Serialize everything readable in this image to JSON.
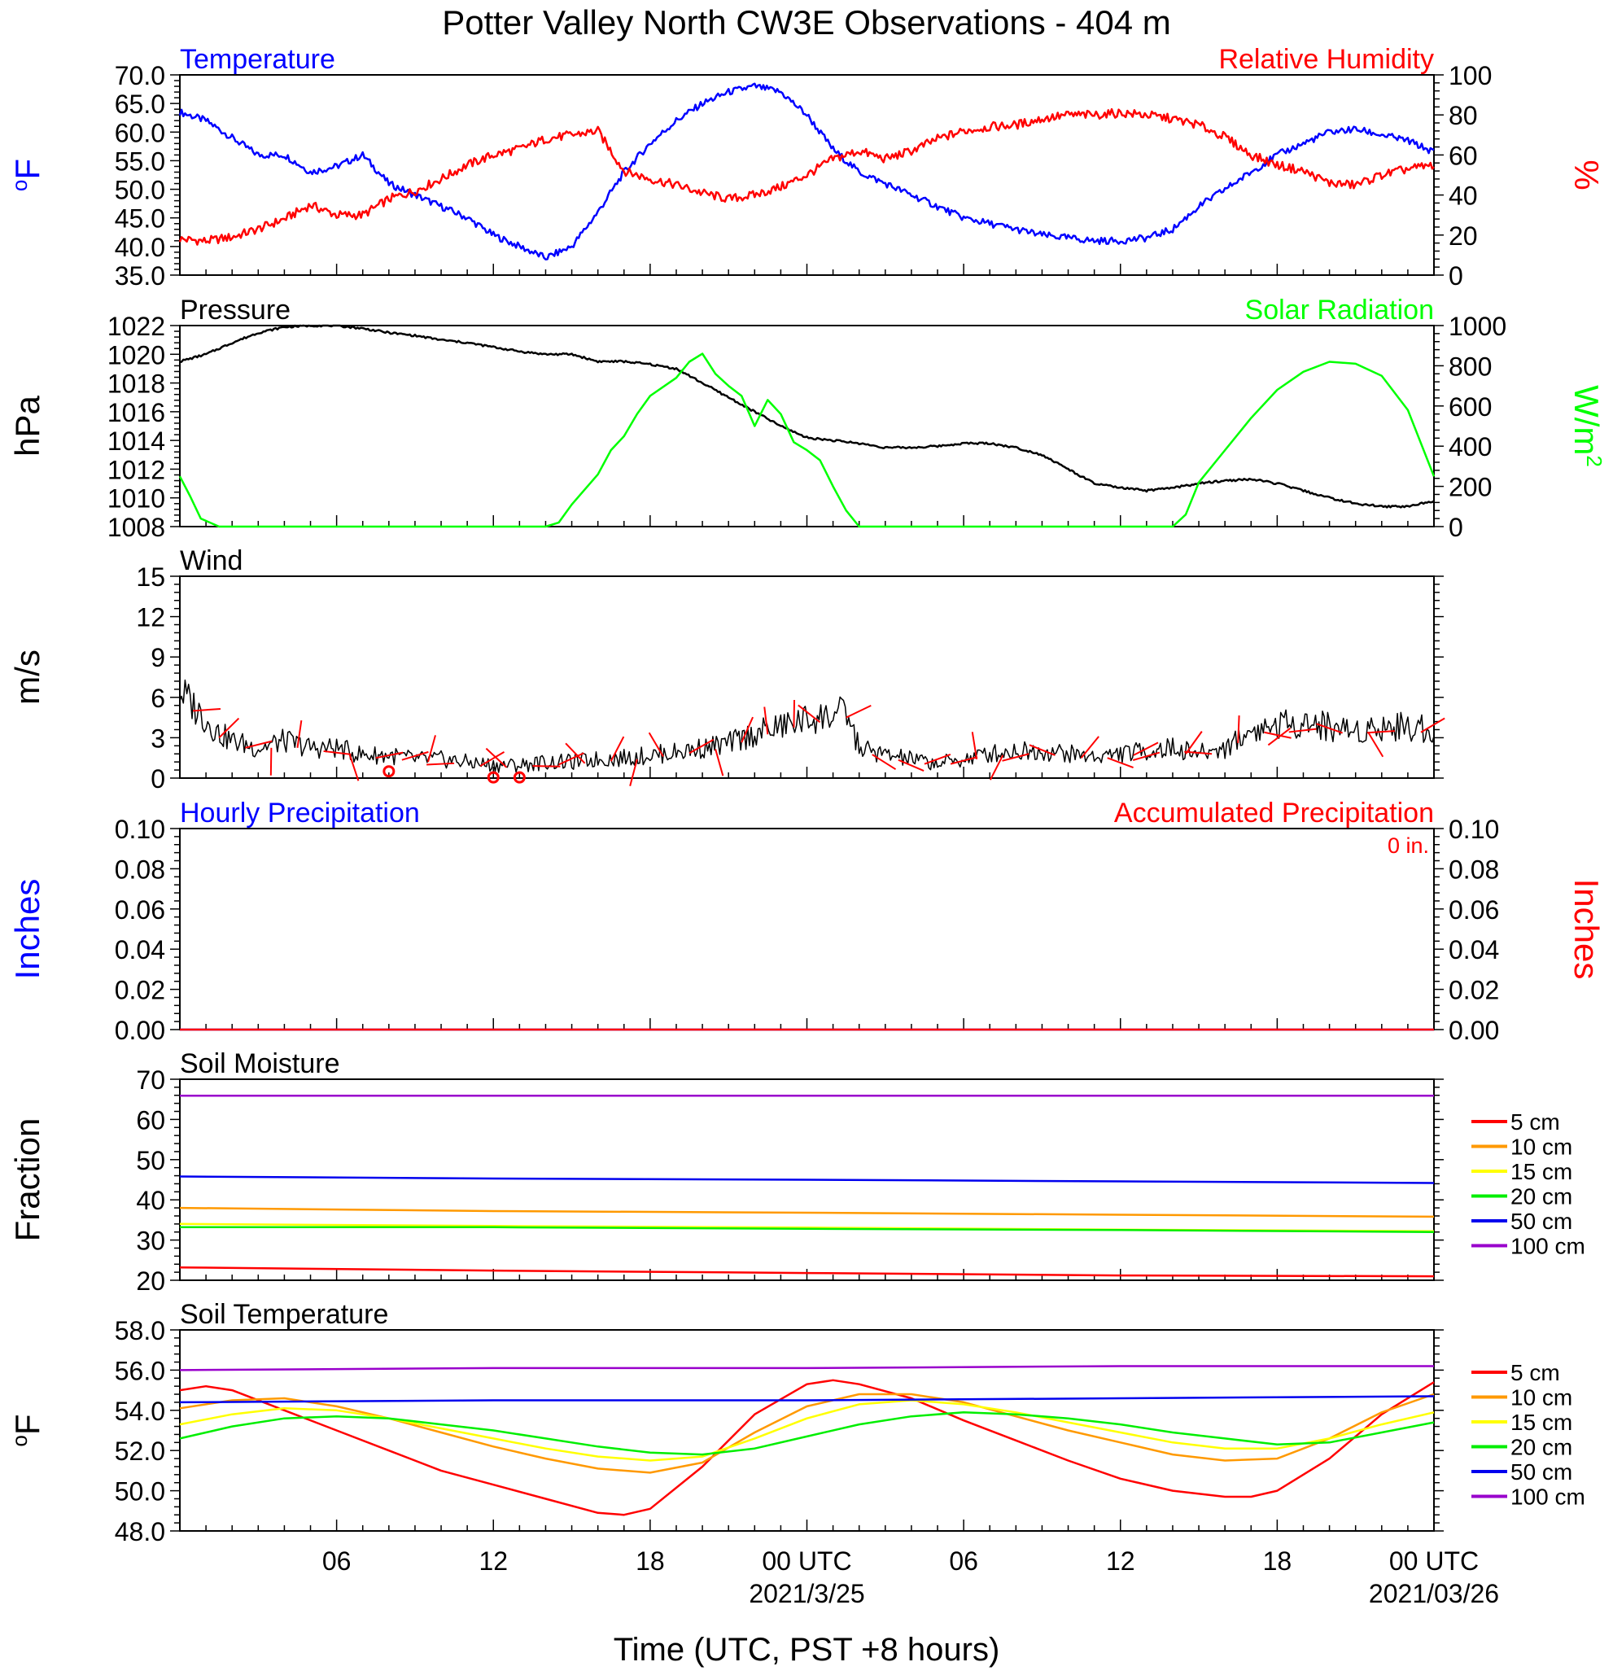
{
  "title": "Potter Valley North CW3E Observations - 404 m",
  "x_axis": {
    "label": "Time (UTC, PST +8 hours)",
    "tick_labels": [
      "06",
      "12",
      "18",
      "00 UTC",
      "06",
      "12",
      "18",
      "00 UTC"
    ],
    "date_labels": [
      "2021/3/25",
      "2021/03/26"
    ],
    "range_hours": [
      0,
      48
    ]
  },
  "colors": {
    "temperature": "#0000ff",
    "humidity": "#ff0000",
    "pressure": "#000000",
    "solar": "#00ff00",
    "wind_speed": "#000000",
    "wind_barb": "#ff0000",
    "hourly_precip": "#0000ff",
    "accum_precip": "#ff0000",
    "depth_5": "#ff0000",
    "depth_10": "#ff9900",
    "depth_15": "#ffff00",
    "depth_20": "#00ee00",
    "depth_50": "#0000ee",
    "depth_100": "#9900cc"
  },
  "chart_data": [
    {
      "type": "line",
      "panel": "temperature_humidity",
      "left_title": "Temperature",
      "right_title": "Relative Humidity",
      "ylabel_left": "oF",
      "ylabel_right": "%",
      "ylim_left": [
        35,
        70
      ],
      "ylim_right": [
        0,
        100
      ],
      "yticks_left": [
        "35.0",
        "40.0",
        "45.0",
        "50.0",
        "55.0",
        "60.0",
        "65.0",
        "70.0"
      ],
      "yticks_right": [
        "0",
        "20",
        "40",
        "60",
        "80",
        "100"
      ],
      "series": [
        {
          "name": "Temperature",
          "axis": "left",
          "x": [
            0,
            1,
            2,
            3,
            4,
            5,
            6,
            7,
            8,
            9,
            10,
            11,
            12,
            13,
            14,
            15,
            16,
            17,
            18,
            19,
            20,
            21,
            22,
            23,
            24,
            25,
            26,
            27,
            28,
            29,
            30,
            31,
            32,
            33,
            34,
            35,
            36,
            37,
            38,
            39,
            40,
            41,
            42,
            43,
            44,
            45,
            46,
            47,
            48
          ],
          "y": [
            63.5,
            62,
            59,
            56,
            56,
            53,
            54,
            56,
            51,
            49,
            47,
            45,
            42,
            40,
            38,
            40,
            46,
            53,
            58,
            62,
            65,
            67,
            68,
            67,
            63,
            57,
            53,
            51,
            49,
            47,
            45,
            44,
            43,
            42,
            41.5,
            41,
            41,
            41.5,
            43,
            47,
            50,
            53,
            56,
            58,
            60,
            60.5,
            59.5,
            58.5,
            56.5
          ]
        },
        {
          "name": "Relative Humidity",
          "axis": "right",
          "x": [
            0,
            1,
            2,
            3,
            4,
            5,
            6,
            7,
            8,
            9,
            10,
            11,
            12,
            13,
            14,
            15,
            16,
            17,
            18,
            19,
            20,
            21,
            22,
            23,
            24,
            25,
            26,
            27,
            28,
            29,
            30,
            31,
            32,
            33,
            34,
            35,
            36,
            37,
            38,
            39,
            40,
            41,
            42,
            43,
            44,
            45,
            46,
            47,
            48
          ],
          "y": [
            18,
            17,
            19,
            23,
            28,
            35,
            30,
            30,
            38,
            42,
            48,
            55,
            60,
            63,
            68,
            70,
            72,
            52,
            48,
            45,
            41,
            38,
            40,
            44,
            50,
            58,
            62,
            58,
            62,
            68,
            72,
            74,
            75,
            78,
            80,
            80,
            81,
            80,
            78,
            75,
            69,
            60,
            55,
            52,
            46,
            45,
            50,
            53,
            55
          ]
        }
      ]
    },
    {
      "type": "line",
      "panel": "pressure_solar",
      "left_title": "Pressure",
      "right_title": "Solar Radiation",
      "ylabel_left": "hPa",
      "ylabel_right": "W/m2",
      "ylim_left": [
        1008,
        1022
      ],
      "ylim_right": [
        0,
        1000
      ],
      "yticks_left": [
        "1008",
        "1010",
        "1012",
        "1014",
        "1016",
        "1018",
        "1020",
        "1022"
      ],
      "yticks_right": [
        "0",
        "200",
        "400",
        "600",
        "800",
        "1000"
      ],
      "series": [
        {
          "name": "Pressure",
          "axis": "left",
          "x": [
            0,
            1,
            2,
            3,
            4,
            5,
            6,
            7,
            8,
            9,
            10,
            11,
            12,
            13,
            14,
            15,
            16,
            17,
            18,
            19,
            20,
            21,
            22,
            23,
            24,
            25,
            26,
            27,
            28,
            29,
            30,
            31,
            32,
            33,
            34,
            35,
            36,
            37,
            38,
            39,
            40,
            41,
            42,
            43,
            44,
            45,
            46,
            47,
            48
          ],
          "y": [
            1019.5,
            1020,
            1020.8,
            1021.5,
            1021.9,
            1022,
            1022,
            1021.8,
            1021.5,
            1021.3,
            1021,
            1020.8,
            1020.5,
            1020.2,
            1020,
            1020,
            1019.5,
            1019.5,
            1019.3,
            1019,
            1018,
            1017,
            1016,
            1015,
            1014.2,
            1014,
            1013.8,
            1013.5,
            1013.5,
            1013.6,
            1013.8,
            1013.8,
            1013.5,
            1013,
            1012,
            1011,
            1010.7,
            1010.5,
            1010.7,
            1011,
            1011.2,
            1011.3,
            1011,
            1010.5,
            1010,
            1009.6,
            1009.4,
            1009.4,
            1009.8
          ]
        },
        {
          "name": "Solar Radiation",
          "axis": "right",
          "x": [
            0,
            0.4,
            0.8,
            1.5,
            2,
            4,
            6,
            8,
            10,
            12,
            13,
            14,
            14.5,
            15,
            16,
            16.5,
            17,
            17.5,
            18,
            19,
            19.5,
            20,
            20.5,
            21,
            21.5,
            22,
            22.5,
            23,
            23.5,
            24,
            24.5,
            25,
            25.5,
            26,
            28,
            30,
            32,
            34,
            36,
            37,
            38,
            38.5,
            39,
            40,
            41,
            42,
            43,
            44,
            45,
            46,
            47,
            48
          ],
          "y": [
            250,
            150,
            40,
            0,
            0,
            0,
            0,
            0,
            0,
            0,
            0,
            0,
            20,
            110,
            260,
            380,
            450,
            560,
            650,
            740,
            820,
            860,
            760,
            700,
            650,
            500,
            630,
            560,
            420,
            380,
            330,
            200,
            80,
            0,
            0,
            0,
            0,
            0,
            0,
            0,
            0,
            60,
            220,
            380,
            540,
            680,
            770,
            820,
            810,
            750,
            580,
            250
          ]
        }
      ]
    },
    {
      "type": "line",
      "panel": "wind",
      "left_title": "Wind",
      "ylabel_left": "m/s",
      "ylim_left": [
        0,
        15
      ],
      "yticks_left": [
        "0",
        "3",
        "6",
        "9",
        "12",
        "15"
      ],
      "series": [
        {
          "name": "Wind",
          "axis": "left",
          "x": [
            0,
            0.5,
            1,
            1.5,
            2,
            3,
            4,
            5,
            6,
            7,
            8,
            9,
            10,
            11,
            12,
            13,
            14,
            15,
            16,
            17,
            18,
            19,
            20,
            21,
            22,
            23,
            24,
            25,
            25.5,
            26,
            27,
            28,
            29,
            30,
            31,
            32,
            33,
            34,
            35,
            36,
            37,
            38,
            39,
            40,
            41,
            42,
            43,
            44,
            45,
            46,
            47,
            48
          ],
          "y": [
            6,
            5,
            4,
            3,
            2.5,
            2,
            2.5,
            2,
            2,
            1.5,
            1.5,
            1.2,
            1.2,
            1,
            0.8,
            0.8,
            1,
            1,
            1.2,
            1.3,
            1.5,
            1.7,
            2,
            2.3,
            3,
            3.5,
            4,
            4.3,
            4.5,
            2,
            1.5,
            1.2,
            0.9,
            1.2,
            1.6,
            1.8,
            1.8,
            1.6,
            1.4,
            1.6,
            1.8,
            2,
            1.6,
            2,
            3.2,
            3.6,
            3.8,
            3.5,
            3.2,
            3.5,
            3.5,
            3.3
          ]
        }
      ]
    },
    {
      "type": "line",
      "panel": "precipitation",
      "left_title": "Hourly Precipitation",
      "right_title": "Accumulated Precipitation",
      "annotation": "0 in.",
      "ylabel_left": "Inches",
      "ylabel_right": "Inches",
      "ylim_left": [
        0,
        0.1
      ],
      "ylim_right": [
        0,
        0.1
      ],
      "yticks_left": [
        "0.00",
        "0.02",
        "0.04",
        "0.06",
        "0.08",
        "0.10"
      ],
      "yticks_right": [
        "0.00",
        "0.02",
        "0.04",
        "0.06",
        "0.08",
        "0.10"
      ],
      "series": [
        {
          "name": "Hourly Precipitation",
          "axis": "left",
          "x": [
            0,
            48
          ],
          "y": [
            0,
            0
          ]
        },
        {
          "name": "Accumulated Precipitation",
          "axis": "right",
          "x": [
            0,
            48
          ],
          "y": [
            0,
            0
          ]
        }
      ]
    },
    {
      "type": "line",
      "panel": "soil_moisture",
      "left_title": "Soil Moisture",
      "ylabel_left": "Fraction",
      "ylim_left": [
        20,
        70
      ],
      "yticks_left": [
        "20",
        "30",
        "40",
        "50",
        "60",
        "70"
      ],
      "legend": [
        "5 cm",
        "10 cm",
        "15 cm",
        "20 cm",
        "50 cm",
        "100 cm"
      ],
      "series": [
        {
          "name": "5 cm",
          "axis": "left",
          "x": [
            0,
            12,
            24,
            36,
            48
          ],
          "y": [
            23.2,
            22.4,
            21.8,
            21.2,
            21
          ]
        },
        {
          "name": "10 cm",
          "axis": "left",
          "x": [
            0,
            12,
            24,
            36,
            48
          ],
          "y": [
            38,
            37.2,
            36.8,
            36.3,
            35.8
          ]
        },
        {
          "name": "15 cm",
          "axis": "left",
          "x": [
            0,
            12,
            24,
            36,
            48
          ],
          "y": [
            34,
            33.5,
            33.1,
            32.6,
            32.2
          ]
        },
        {
          "name": "20 cm",
          "axis": "left",
          "x": [
            0,
            12,
            24,
            36,
            48
          ],
          "y": [
            33.2,
            33.2,
            32.8,
            32.5,
            32
          ]
        },
        {
          "name": "50 cm",
          "axis": "left",
          "x": [
            0,
            12,
            24,
            36,
            48
          ],
          "y": [
            45.8,
            45.3,
            45,
            44.6,
            44.2
          ]
        },
        {
          "name": "100 cm",
          "axis": "left",
          "x": [
            0,
            12,
            24,
            36,
            48
          ],
          "y": [
            65.9,
            65.9,
            65.9,
            65.9,
            65.9
          ]
        }
      ]
    },
    {
      "type": "line",
      "panel": "soil_temperature",
      "left_title": "Soil Temperature",
      "ylabel_left": "oF",
      "ylim_left": [
        48,
        58
      ],
      "yticks_left": [
        "48.0",
        "50.0",
        "52.0",
        "54.0",
        "56.0",
        "58.0"
      ],
      "legend": [
        "5 cm",
        "10 cm",
        "15 cm",
        "20 cm",
        "50 cm",
        "100 cm"
      ],
      "series": [
        {
          "name": "5 cm",
          "axis": "left",
          "x": [
            0,
            1,
            2,
            4,
            6,
            8,
            10,
            12,
            14,
            16,
            17,
            18,
            20,
            22,
            24,
            25,
            26,
            28,
            30,
            32,
            34,
            36,
            38,
            40,
            41,
            42,
            44,
            46,
            48
          ],
          "y": [
            55,
            55.2,
            55,
            54,
            53,
            52,
            51,
            50.3,
            49.6,
            48.9,
            48.8,
            49.1,
            51.2,
            53.8,
            55.3,
            55.5,
            55.3,
            54.6,
            53.5,
            52.5,
            51.5,
            50.6,
            50,
            49.7,
            49.7,
            50,
            51.6,
            53.8,
            55.4
          ]
        },
        {
          "name": "10 cm",
          "axis": "left",
          "x": [
            0,
            2,
            4,
            6,
            8,
            10,
            12,
            14,
            16,
            18,
            20,
            22,
            24,
            26,
            28,
            30,
            32,
            34,
            36,
            38,
            40,
            42,
            44,
            46,
            48
          ],
          "y": [
            54.1,
            54.5,
            54.6,
            54.2,
            53.6,
            52.9,
            52.2,
            51.6,
            51.1,
            50.9,
            51.4,
            52.9,
            54.2,
            54.8,
            54.8,
            54.4,
            53.7,
            53,
            52.4,
            51.8,
            51.5,
            51.6,
            52.6,
            53.9,
            54.8
          ]
        },
        {
          "name": "15 cm",
          "axis": "left",
          "x": [
            0,
            2,
            4,
            6,
            8,
            10,
            12,
            14,
            16,
            18,
            20,
            22,
            24,
            26,
            28,
            30,
            32,
            34,
            36,
            38,
            40,
            42,
            44,
            46,
            48
          ],
          "y": [
            53.3,
            53.8,
            54.1,
            54,
            53.6,
            53.1,
            52.6,
            52.1,
            51.7,
            51.5,
            51.7,
            52.6,
            53.6,
            54.3,
            54.5,
            54.3,
            53.9,
            53.4,
            52.9,
            52.4,
            52.1,
            52.1,
            52.6,
            53.3,
            53.9
          ]
        },
        {
          "name": "20 cm",
          "axis": "left",
          "x": [
            0,
            2,
            4,
            6,
            8,
            10,
            12,
            14,
            16,
            18,
            20,
            22,
            24,
            26,
            28,
            30,
            32,
            34,
            36,
            38,
            40,
            42,
            44,
            46,
            48
          ],
          "y": [
            52.6,
            53.2,
            53.6,
            53.7,
            53.6,
            53.3,
            53,
            52.6,
            52.2,
            51.9,
            51.8,
            52.1,
            52.7,
            53.3,
            53.7,
            53.9,
            53.8,
            53.6,
            53.3,
            52.9,
            52.6,
            52.3,
            52.4,
            52.9,
            53.4
          ]
        },
        {
          "name": "50 cm",
          "axis": "left",
          "x": [
            0,
            12,
            24,
            36,
            48
          ],
          "y": [
            54.4,
            54.5,
            54.5,
            54.6,
            54.7
          ]
        },
        {
          "name": "100 cm",
          "axis": "left",
          "x": [
            0,
            12,
            24,
            36,
            48
          ],
          "y": [
            56,
            56.1,
            56.1,
            56.2,
            56.2
          ]
        }
      ]
    }
  ]
}
